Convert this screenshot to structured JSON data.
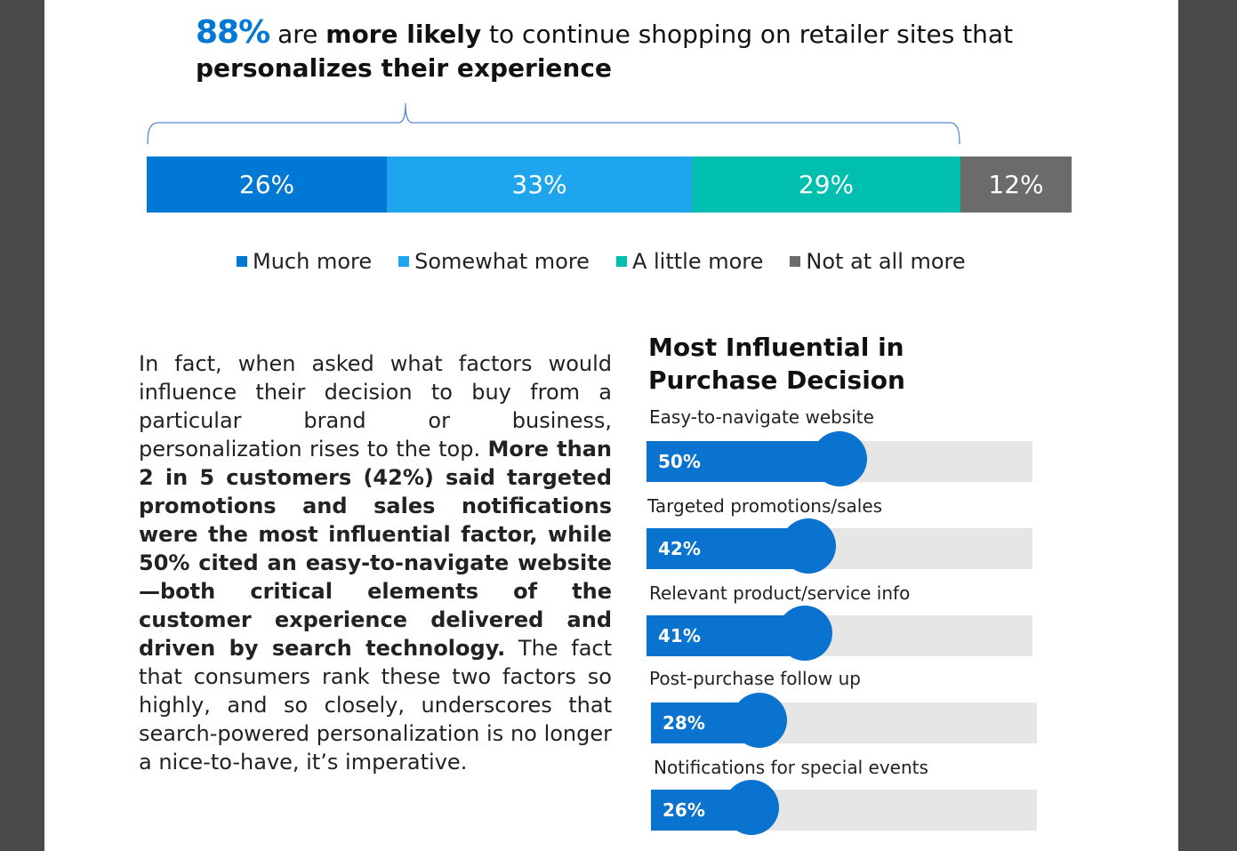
{
  "headline": {
    "stat": "88%",
    "t1": " are ",
    "b1": "more likely",
    "t2": " to continue shopping on retailer sites that ",
    "b2": "personalizes their experience"
  },
  "chart_data": [
    {
      "type": "bar",
      "orientation": "stacked-horizontal",
      "categories": [
        "Much more",
        "Somewhat more",
        "A little more",
        "Not at all more"
      ],
      "values": [
        26,
        33,
        29,
        12
      ],
      "labels": [
        "26%",
        "33%",
        "29%",
        "12%"
      ],
      "colors": [
        "#0078d4",
        "#1fa5ee",
        "#00bfae",
        "#6b6b6b"
      ],
      "legend": "bottom"
    },
    {
      "type": "bar",
      "orientation": "horizontal",
      "title": "Most Influential in Purchase Decision",
      "categories": [
        "Easy-to-navigate website",
        "Targeted promotions/sales",
        "Relevant product/service info",
        "Post-purchase follow up",
        "Notifications for special events"
      ],
      "values": [
        50,
        42,
        41,
        28,
        26
      ],
      "labels": [
        "50%",
        "42%",
        "41%",
        "28%",
        "26%"
      ],
      "xlim": [
        0,
        100
      ],
      "color": "#0a72cf"
    }
  ],
  "paragraph": {
    "p1": "In fact, when asked what factors would influence their decision to buy from a particular brand or business, personalization rises to the top. ",
    "bold": "More than 2 in 5 customers (42%) said targeted promotions and sales notifications were the most influential factor, while 50% cited an easy-to-navigate website—both critical elements of the customer experience delivered and driven by search technology.",
    "p2": " The fact that consumers rank these two factors so highly, and so closely, underscores that search-powered personalization is no longer a nice-to-have, it’s imperative."
  }
}
